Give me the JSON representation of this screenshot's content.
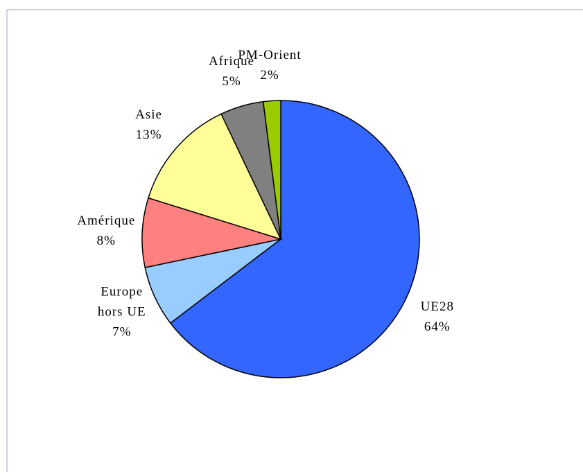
{
  "chart_data": {
    "type": "pie",
    "categories": [
      "UE28",
      "Europe hors UE",
      "Amérique",
      "Asie",
      "Afrique",
      "PM-Orient"
    ],
    "values": [
      64,
      7,
      8,
      13,
      5,
      2
    ],
    "value_labels": [
      "64%",
      "7%",
      "8%",
      "13%",
      "5%",
      "2%"
    ],
    "colors": [
      "#3366ff",
      "#99ccff",
      "#ff8080",
      "#ffff99",
      "#808080",
      "#99cc00"
    ]
  }
}
